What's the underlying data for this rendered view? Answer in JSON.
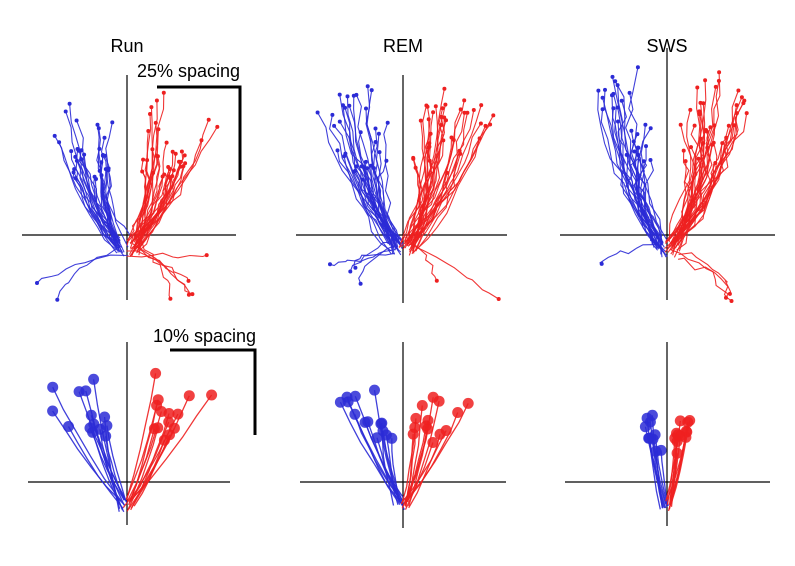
{
  "figure": {
    "colors": {
      "left_tuned": "#2b2bd6",
      "right_tuned": "#ee2020",
      "axis": "#000000"
    },
    "scale_labels": {
      "top": "25% spacing",
      "bottom": "10% spacing"
    }
  },
  "chart_data": [
    {
      "type": "line",
      "panel": "top-left",
      "title": "Run",
      "state": "Run",
      "row": "individual trajectories",
      "scale_bar": "25% spacing",
      "n_blue": 34,
      "n_red": 40,
      "spread": 0.85,
      "height": 1.0,
      "markers": "small",
      "wiggle": 0.35
    },
    {
      "type": "line",
      "panel": "top-middle",
      "title": "REM",
      "state": "REM",
      "row": "individual trajectories",
      "n_blue": 38,
      "n_red": 40,
      "spread": 0.8,
      "height": 1.05,
      "markers": "small",
      "wiggle": 0.4
    },
    {
      "type": "line",
      "panel": "top-right",
      "title": "SWS",
      "state": "SWS",
      "row": "individual trajectories",
      "n_blue": 30,
      "n_red": 40,
      "spread": 0.65,
      "height": 1.15,
      "markers": "small",
      "wiggle": 0.6
    },
    {
      "type": "line",
      "panel": "bottom-left",
      "title": "",
      "state": "Run",
      "row": "averaged trajectories",
      "scale_bar": "10% spacing",
      "n_blue": 14,
      "n_red": 14,
      "spread": 1.0,
      "height": 1.0,
      "markers": "large",
      "wiggle": 0.08
    },
    {
      "type": "line",
      "panel": "bottom-middle",
      "title": "",
      "state": "REM",
      "row": "averaged trajectories",
      "n_blue": 14,
      "n_red": 14,
      "spread": 0.75,
      "height": 0.85,
      "markers": "large",
      "wiggle": 0.12
    },
    {
      "type": "line",
      "panel": "bottom-right",
      "title": "",
      "state": "SWS",
      "row": "averaged trajectories",
      "n_blue": 10,
      "n_red": 12,
      "spread": 0.3,
      "height": 0.6,
      "markers": "large",
      "wiggle": 0.05
    }
  ]
}
